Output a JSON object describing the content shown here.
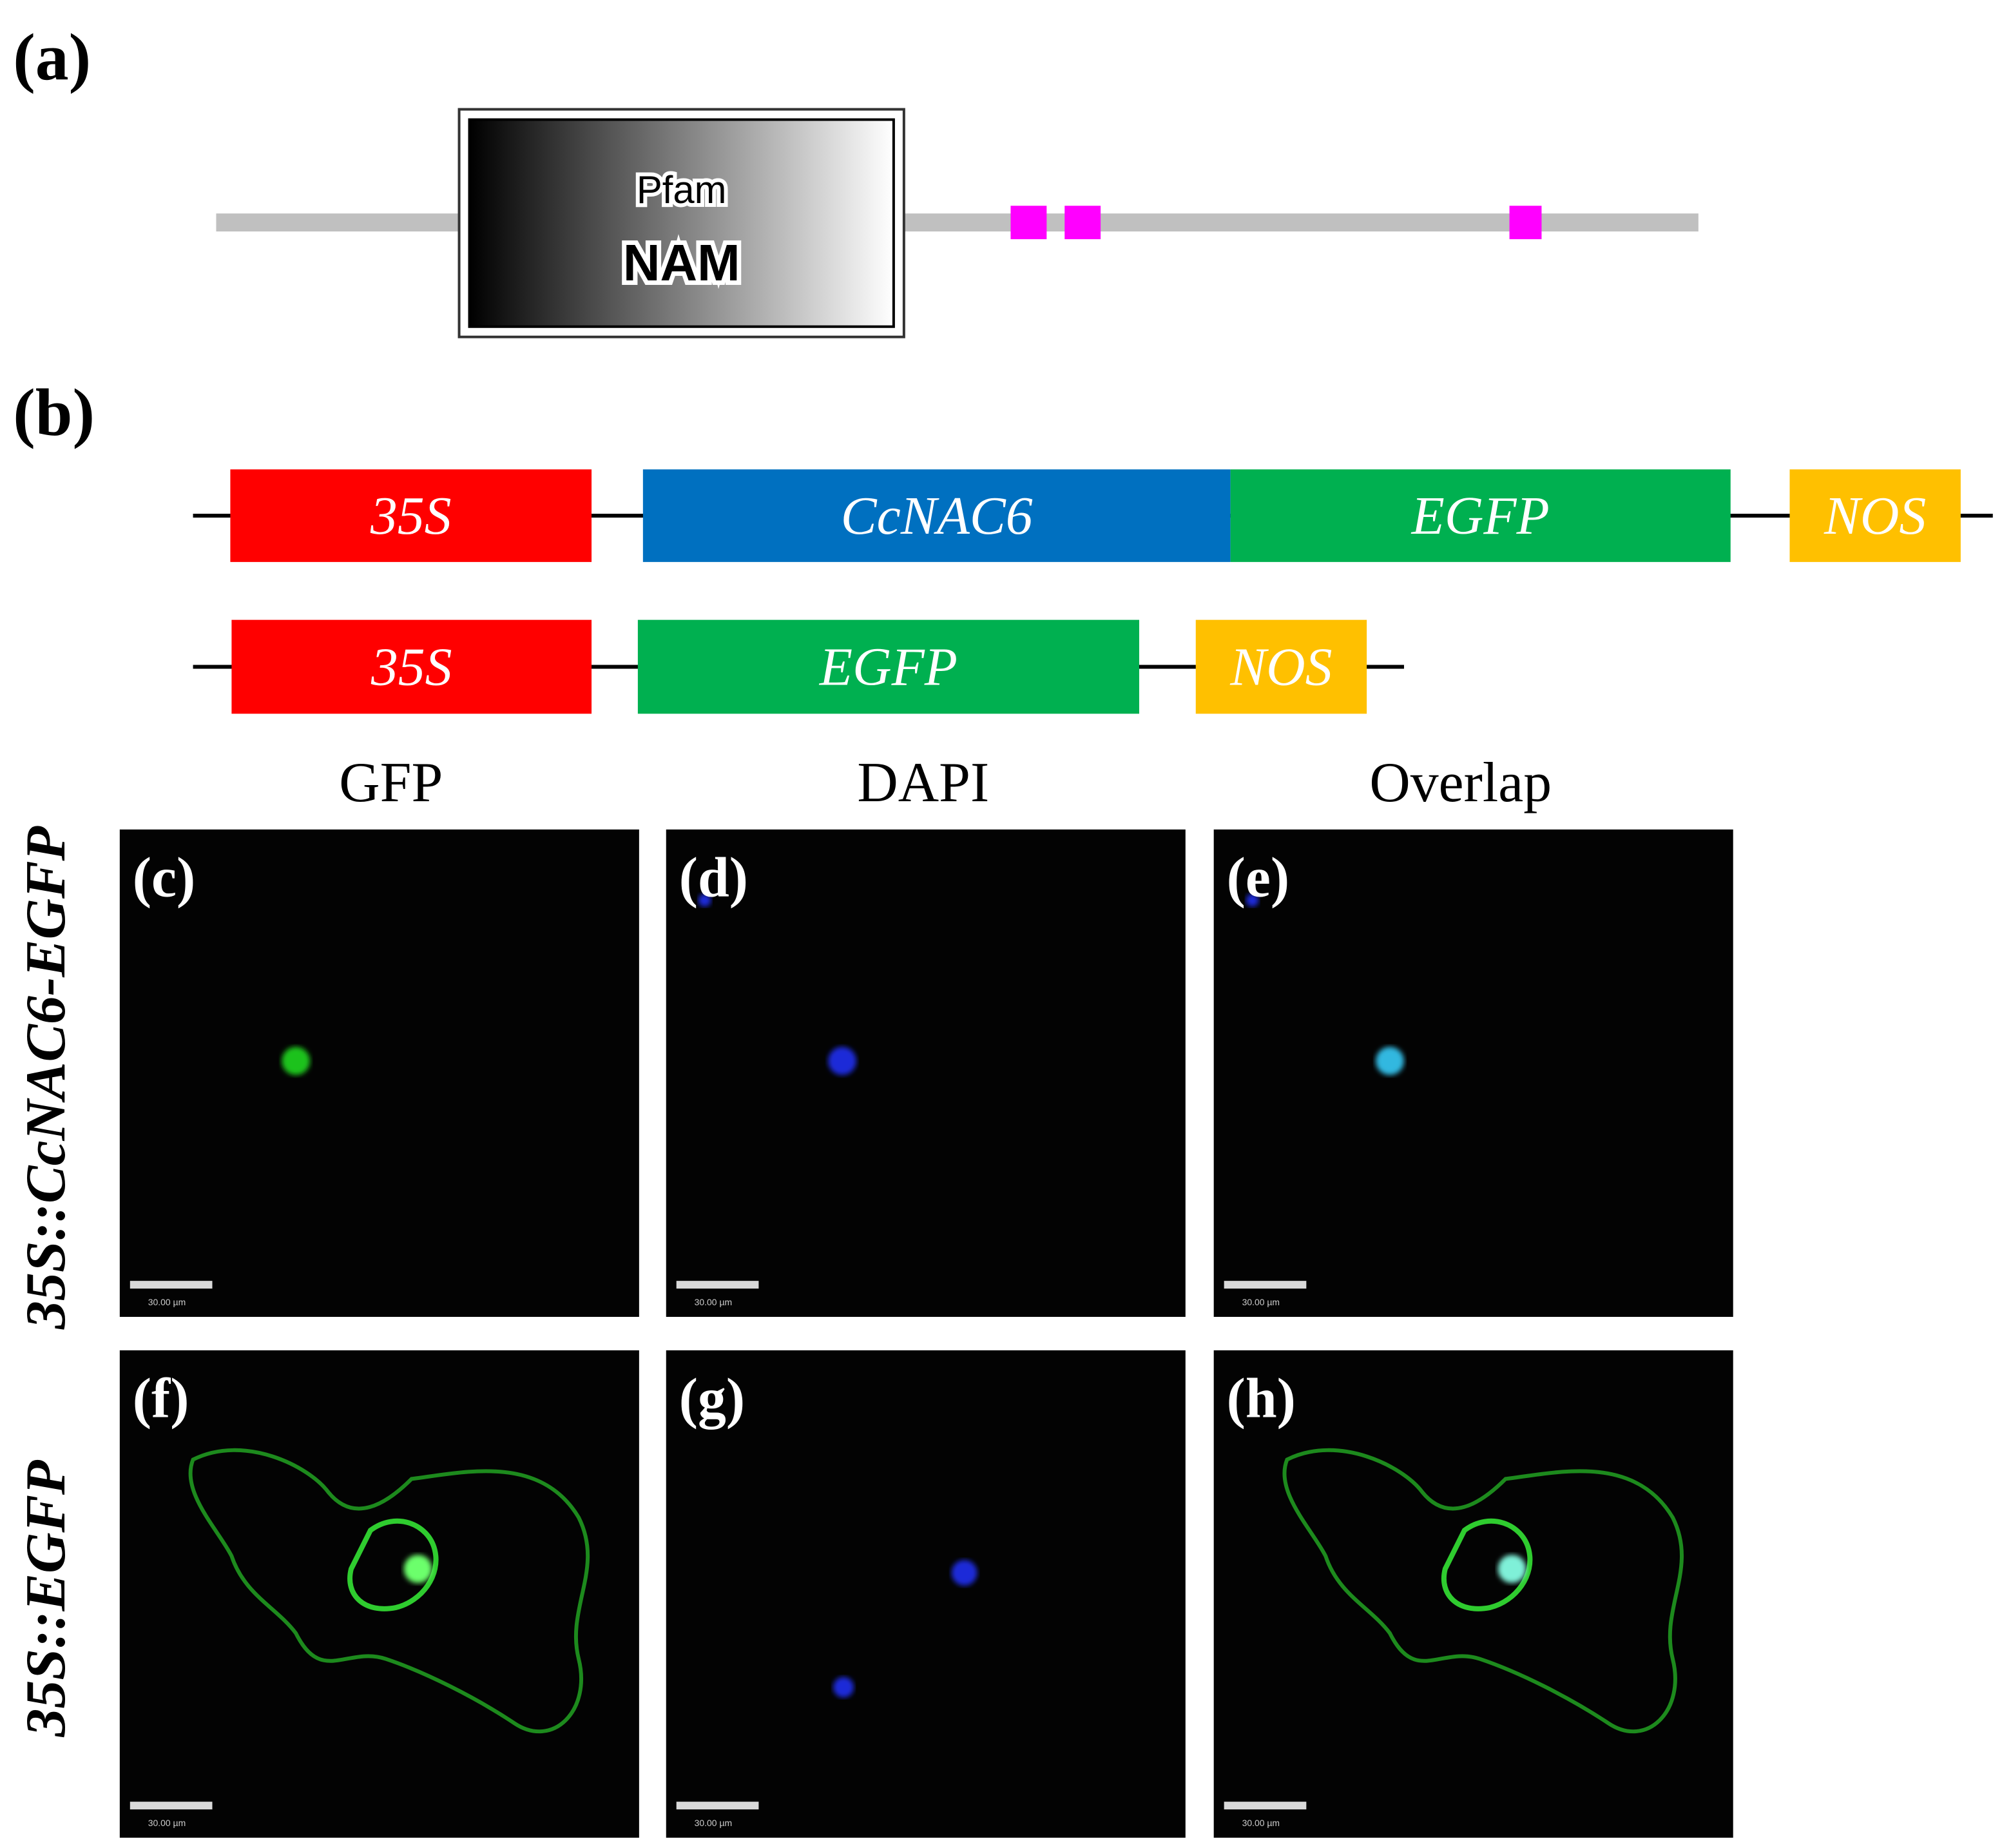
{
  "panel_labels": {
    "a": "(a)",
    "b": "(b)"
  },
  "protein": {
    "domain_db": "Pfam",
    "domain_name": "NAM"
  },
  "constructs": [
    {
      "segments": [
        "35S",
        "CcNAC6",
        "EGFP",
        "NOS"
      ]
    },
    {
      "segments": [
        "35S",
        "EGFP",
        "NOS"
      ]
    }
  ],
  "columns": [
    "GFP",
    "DAPI",
    "Overlap"
  ],
  "rows": [
    "35S::CcNAC6-EGFP",
    "35S::EGFP"
  ],
  "images": [
    [
      "(c)",
      "(d)",
      "(e)"
    ],
    [
      "(f)",
      "(g)",
      "(h)"
    ]
  ],
  "scale_bar": "30.00 µm"
}
